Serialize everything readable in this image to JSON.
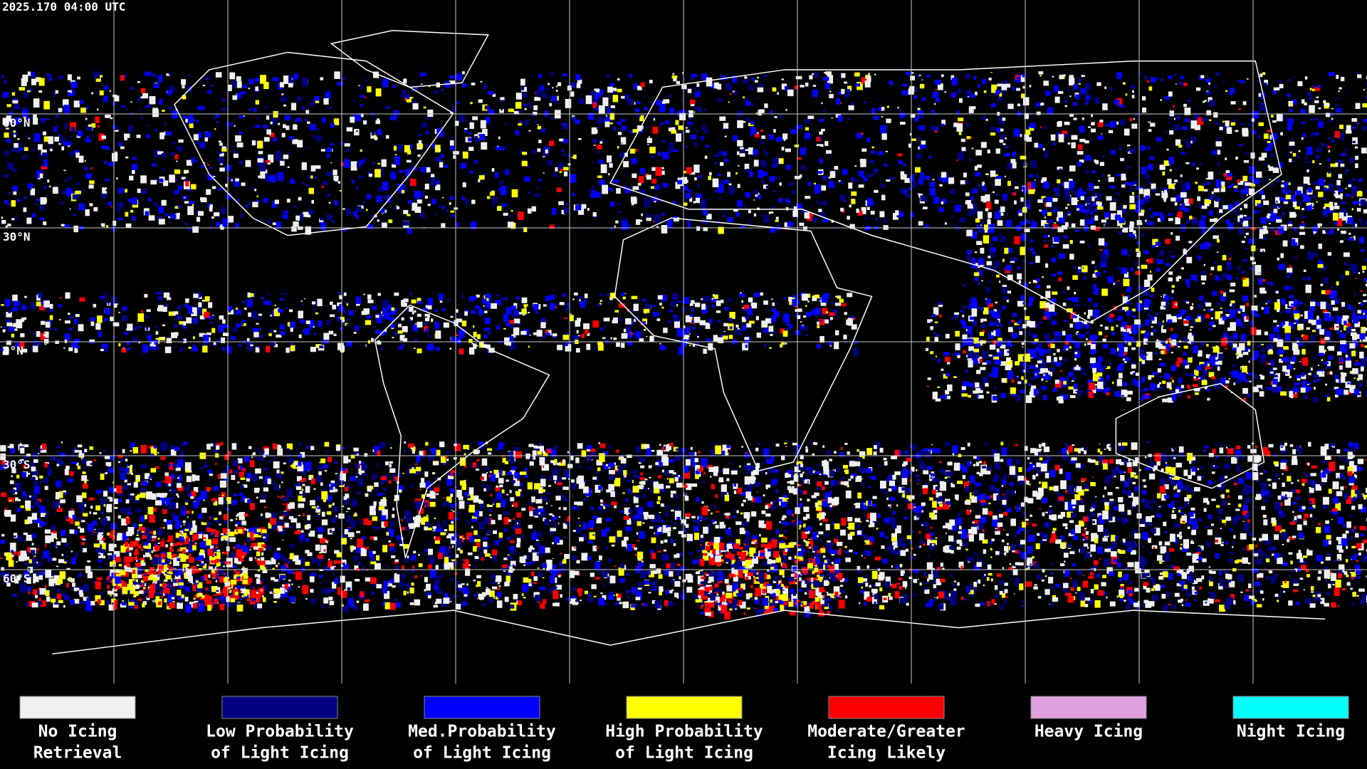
{
  "header": {
    "timestamp": "2025.170 04:00 UTC"
  },
  "lat_labels": [
    "60°N",
    "30°N",
    "0°N",
    "30°S",
    "60°S"
  ],
  "legend": [
    {
      "lines": [
        "No Icing",
        "Retrieval"
      ],
      "color": "#f0f0f0"
    },
    {
      "lines": [
        "Low Probability",
        "of Light Icing"
      ],
      "color": "#000080"
    },
    {
      "lines": [
        "Med.Probability",
        "of Light Icing"
      ],
      "color": "#0000ff"
    },
    {
      "lines": [
        "High Probability",
        "of Light Icing"
      ],
      "color": "#ffff00"
    },
    {
      "lines": [
        "Moderate/Greater",
        "Icing Likely"
      ],
      "color": "#ff0000"
    },
    {
      "lines": [
        "Heavy Icing"
      ],
      "color": "#e0a0e0"
    },
    {
      "lines": [
        "Night Icing"
      ],
      "color": "#00ffff"
    }
  ]
}
